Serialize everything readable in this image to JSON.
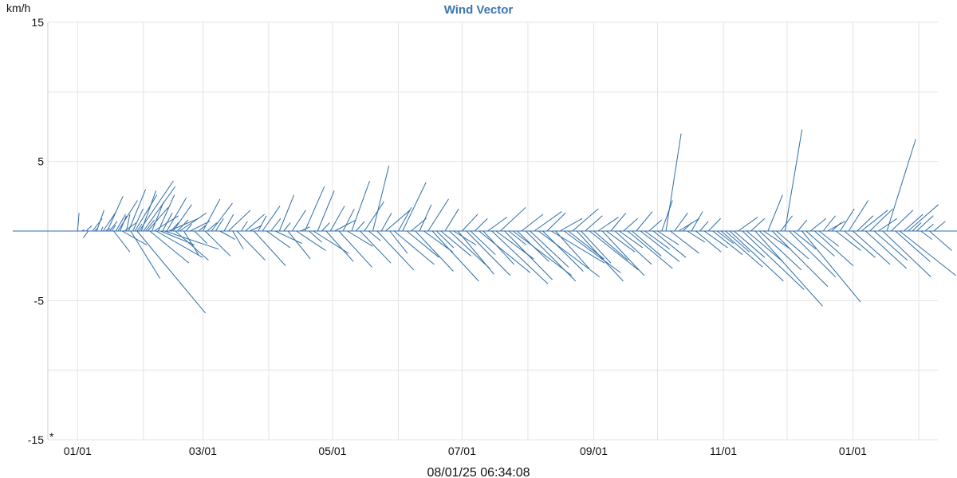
{
  "colors": {
    "series": "#2f6ea8",
    "title": "#3a76b0",
    "grid": "#e3e3e3"
  },
  "chart_data": {
    "type": "line",
    "subtype": "wind-vector",
    "title": "Wind Vector",
    "ylabel": "km/h",
    "ylim": [
      -15,
      15
    ],
    "y_ticks": [
      15,
      5,
      -5,
      -15
    ],
    "y_gridlines": [
      15,
      10,
      5,
      0,
      -5,
      -10,
      -15
    ],
    "x_tick_labels": [
      "01/01",
      "03/01",
      "05/01",
      "07/01",
      "09/01",
      "11/01",
      "01/01"
    ],
    "x_tick_days": [
      0,
      59,
      120,
      181,
      243,
      304,
      365
    ],
    "x_gridline_days": [
      0,
      31,
      59,
      90,
      120,
      151,
      181,
      212,
      243,
      273,
      304,
      334,
      365,
      396
    ],
    "xlim_days": [
      -14,
      405
    ],
    "timestamp": "08/01/25 06:34:08",
    "corner_marker": "*",
    "grid": true,
    "legend": "none",
    "series": [
      {
        "values_note": "each vector: [day, u_east_kmh, v_north_kmh]",
        "vectors": [
          [
            0,
            -7.0,
            0.0
          ],
          [
            0,
            0.3,
            1.3
          ],
          [
            2,
            0.5,
            0.1
          ],
          [
            4,
            1.2,
            0.4
          ],
          [
            5,
            -1.0,
            -0.5
          ],
          [
            7,
            2.0,
            0.9
          ],
          [
            8,
            0.6,
            0.2
          ],
          [
            9,
            1.5,
            1.5
          ],
          [
            11,
            0.4,
            0.3
          ],
          [
            12,
            2.7,
            1.4
          ],
          [
            13,
            1.0,
            0.2
          ],
          [
            14,
            3.2,
            2.5
          ],
          [
            15,
            1.6,
            0.7
          ],
          [
            16,
            0.8,
            0.4
          ],
          [
            17,
            3.3,
            -1.5
          ],
          [
            18,
            2.0,
            1.2
          ],
          [
            19,
            4.0,
            2.2
          ],
          [
            20,
            1.3,
            1.1
          ],
          [
            21,
            5.0,
            -1.0
          ],
          [
            22,
            2.5,
            0.6
          ],
          [
            23,
            0.7,
            1.2
          ],
          [
            24,
            3.5,
            3.0
          ],
          [
            25,
            6.0,
            -3.4
          ],
          [
            26,
            2.1,
            1.6
          ],
          [
            27,
            4.5,
            2.6
          ],
          [
            28,
            1.0,
            0.5
          ],
          [
            28,
            14.0,
            -5.9
          ],
          [
            29,
            7.0,
            3.6
          ],
          [
            30,
            3.0,
            2.9
          ],
          [
            31,
            6.5,
            3.2
          ],
          [
            32,
            1.8,
            0.8
          ],
          [
            33,
            4.2,
            1.7
          ],
          [
            34,
            8.0,
            -2.3
          ],
          [
            35,
            2.4,
            2.1
          ],
          [
            36,
            5.0,
            1.1
          ],
          [
            37,
            9.5,
            -1.9
          ],
          [
            38,
            3.3,
            2.6
          ],
          [
            39,
            7.0,
            -1.0
          ],
          [
            40,
            2.0,
            1.3
          ],
          [
            41,
            11.0,
            -1.3
          ],
          [
            42,
            4.0,
            2.4
          ],
          [
            43,
            6.0,
            0.9
          ],
          [
            44,
            1.5,
            0.6
          ],
          [
            45,
            3.8,
            1.9
          ],
          [
            46,
            6.8,
            -2.1
          ],
          [
            47,
            2.2,
            0.8
          ],
          [
            48,
            5.5,
            1.3
          ],
          [
            50,
            3.0,
            -1.7
          ],
          [
            51,
            1.2,
            0.5
          ],
          [
            53,
            4.0,
            0.7
          ],
          [
            55,
            2.6,
            -0.9
          ],
          [
            57,
            1.4,
            0.4
          ],
          [
            59,
            3.5,
            2.3
          ],
          [
            60,
            5.2,
            -1.8
          ],
          [
            61,
            2.0,
            0.6
          ],
          [
            63,
            4.3,
            2.0
          ],
          [
            65,
            1.6,
            0.9
          ],
          [
            67,
            3.1,
            -0.6
          ],
          [
            69,
            1.9,
            1.2
          ],
          [
            71,
            4.5,
            1.5
          ],
          [
            73,
            2.2,
            -1.3
          ],
          [
            75,
            5.8,
            -2.1
          ],
          [
            77,
            1.3,
            0.7
          ],
          [
            79,
            3.9,
            1.2
          ],
          [
            81,
            2.5,
            0.4
          ],
          [
            83,
            6.5,
            -2.5
          ],
          [
            85,
            1.7,
            1.1
          ],
          [
            87,
            3.6,
            1.8
          ],
          [
            89,
            4.8,
            -1.2
          ],
          [
            91,
            2.0,
            0.9
          ],
          [
            93,
            5.5,
            -0.9
          ],
          [
            95,
            3.0,
            2.6
          ],
          [
            97,
            1.4,
            0.6
          ],
          [
            99,
            4.6,
            -2.0
          ],
          [
            101,
            2.8,
            1.5
          ],
          [
            103,
            6.0,
            -1.4
          ],
          [
            105,
            1.9,
            0.3
          ],
          [
            107,
            4.0,
            3.2
          ],
          [
            109,
            2.6,
            -0.8
          ],
          [
            111,
            7.2,
            -1.6
          ],
          [
            113,
            3.4,
            2.9
          ],
          [
            115,
            1.6,
            0.6
          ],
          [
            117,
            5.6,
            -2.2
          ],
          [
            119,
            2.9,
            1.8
          ],
          [
            121,
            4.4,
            0.8
          ],
          [
            123,
            6.8,
            -2.6
          ],
          [
            125,
            2.3,
            1.6
          ],
          [
            127,
            5.2,
            -1.1
          ],
          [
            129,
            3.7,
            3.6
          ],
          [
            131,
            1.8,
            0.7
          ],
          [
            133,
            6.3,
            -2.3
          ],
          [
            135,
            4.0,
            2.1
          ],
          [
            137,
            2.5,
            -0.7
          ],
          [
            139,
            3.3,
            4.7
          ],
          [
            141,
            7.5,
            -2.8
          ],
          [
            143,
            2.1,
            1.3
          ],
          [
            145,
            5.0,
            1.5
          ],
          [
            147,
            3.6,
            -1.6
          ],
          [
            149,
            8.2,
            -2.4
          ],
          [
            151,
            2.7,
            1.7
          ],
          [
            153,
            4.8,
            3.5
          ],
          [
            155,
            6.6,
            -1.9
          ],
          [
            157,
            3.1,
            0.9
          ],
          [
            159,
            7.8,
            -2.9
          ],
          [
            161,
            2.4,
            1.9
          ],
          [
            163,
            5.9,
            -1.5
          ],
          [
            165,
            4.2,
            2.3
          ],
          [
            167,
            9.5,
            -3.6
          ],
          [
            169,
            3.5,
            -1.2
          ],
          [
            171,
            6.2,
            -1.8
          ],
          [
            173,
            2.8,
            1.6
          ],
          [
            175,
            8.3,
            -2.7
          ],
          [
            177,
            4.6,
            -1.0
          ],
          [
            179,
            7.4,
            -3.1
          ],
          [
            181,
            3.2,
            1.2
          ],
          [
            183,
            9.0,
            -3.2
          ],
          [
            185,
            5.1,
            -1.7
          ],
          [
            187,
            2.6,
            0.9
          ],
          [
            189,
            10.5,
            -3.0
          ],
          [
            191,
            6.3,
            -2.4
          ],
          [
            193,
            4.0,
            1.0
          ],
          [
            195,
            11.5,
            -3.8
          ],
          [
            197,
            7.7,
            -2.0
          ],
          [
            199,
            5.2,
            1.7
          ],
          [
            201,
            9.8,
            -3.5
          ],
          [
            203,
            3.6,
            -1.0
          ],
          [
            205,
            12.0,
            -3.2
          ],
          [
            207,
            6.5,
            -2.2
          ],
          [
            209,
            4.4,
            1.2
          ],
          [
            211,
            10.2,
            -3.6
          ],
          [
            213,
            7.9,
            -2.6
          ],
          [
            215,
            5.6,
            1.4
          ],
          [
            217,
            12.5,
            -3.3
          ],
          [
            219,
            8.3,
            -2.9
          ],
          [
            221,
            3.8,
            1.3
          ],
          [
            223,
            10.9,
            -2.3
          ],
          [
            225,
            6.9,
            -2.7
          ],
          [
            227,
            4.6,
            0.9
          ],
          [
            229,
            11.6,
            -3.0
          ],
          [
            231,
            7.3,
            -2.0
          ],
          [
            233,
            5.3,
            1.6
          ],
          [
            235,
            9.5,
            -3.6
          ],
          [
            237,
            6.1,
            -2.3
          ],
          [
            239,
            3.5,
            1.1
          ],
          [
            241,
            10.0,
            -2.8
          ],
          [
            243,
            7.0,
            -2.1
          ],
          [
            245,
            4.2,
            1.0
          ],
          [
            247,
            8.6,
            -3.2
          ],
          [
            249,
            5.8,
            -1.5
          ],
          [
            251,
            3.1,
            1.3
          ],
          [
            253,
            7.5,
            -2.4
          ],
          [
            255,
            4.8,
            -1.2
          ],
          [
            257,
            2.9,
            0.9
          ],
          [
            259,
            9.2,
            -2.7
          ],
          [
            261,
            6.0,
            -1.8
          ],
          [
            263,
            3.3,
            1.4
          ],
          [
            265,
            8.0,
            -2.2
          ],
          [
            267,
            5.1,
            -1.3
          ],
          [
            269,
            2.6,
            0.8
          ],
          [
            271,
            6.7,
            -1.9
          ],
          [
            273,
            4.4,
            -1.0
          ],
          [
            275,
            2.2,
            2.2
          ],
          [
            277,
            3.1,
            7.0
          ],
          [
            279,
            5.9,
            -1.6
          ],
          [
            281,
            2.7,
            1.3
          ],
          [
            283,
            4.2,
            0.9
          ],
          [
            285,
            1.8,
            0.6
          ],
          [
            287,
            3.6,
            -0.8
          ],
          [
            289,
            2.3,
            1.4
          ],
          [
            291,
            5.2,
            -1.5
          ],
          [
            293,
            1.7,
            0.7
          ],
          [
            295,
            4.8,
            -1.2
          ],
          [
            297,
            2.5,
            0.9
          ],
          [
            299,
            6.1,
            -1.7
          ],
          [
            301,
            3.4,
            -0.9
          ],
          [
            303,
            8.5,
            -2.6
          ],
          [
            305,
            4.9,
            -1.5
          ],
          [
            307,
            11.0,
            -3.6
          ],
          [
            309,
            6.3,
            -1.9
          ],
          [
            311,
            4.0,
            1.0
          ],
          [
            313,
            12.6,
            -4.2
          ],
          [
            315,
            7.4,
            -2.2
          ],
          [
            317,
            2.8,
            0.9
          ],
          [
            319,
            13.8,
            -5.4
          ],
          [
            321,
            8.6,
            -2.8
          ],
          [
            323,
            5.5,
            -1.3
          ],
          [
            325,
            3.0,
            2.6
          ],
          [
            327,
            11.4,
            -4.0
          ],
          [
            329,
            6.6,
            -2.0
          ],
          [
            331,
            2.4,
            1.1
          ],
          [
            333,
            3.5,
            7.3
          ],
          [
            335,
            9.5,
            -3.3
          ],
          [
            337,
            4.6,
            -1.3
          ],
          [
            339,
            1.9,
            0.8
          ],
          [
            341,
            12.0,
            -5.1
          ],
          [
            343,
            5.8,
            -1.8
          ],
          [
            345,
            3.2,
            0.9
          ],
          [
            347,
            7.9,
            -2.5
          ],
          [
            349,
            4.1,
            -1.1
          ],
          [
            351,
            2.5,
            1.1
          ],
          [
            353,
            3.6,
            0.7
          ],
          [
            355,
            1.9,
            0.6
          ],
          [
            357,
            5.1,
            -1.4
          ],
          [
            359,
            2.9,
            1.6
          ],
          [
            361,
            6.3,
            -1.9
          ],
          [
            363,
            4.0,
            2.2
          ],
          [
            365,
            7.6,
            -2.4
          ],
          [
            367,
            3.3,
            1.1
          ],
          [
            369,
            5.4,
            1.5
          ],
          [
            371,
            8.4,
            -2.7
          ],
          [
            373,
            4.7,
            1.6
          ],
          [
            375,
            6.8,
            -2.1
          ],
          [
            377,
            3.8,
            0.9
          ],
          [
            379,
            9.9,
            -3.3
          ],
          [
            381,
            5.9,
            6.6
          ],
          [
            383,
            4.5,
            1.5
          ],
          [
            385,
            7.1,
            -2.2
          ],
          [
            387,
            11.5,
            -3.2
          ],
          [
            389,
            3.9,
            1.2
          ],
          [
            391,
            6.2,
            1.9
          ],
          [
            393,
            1.8,
            0.6
          ],
          [
            395,
            3.4,
            1.1
          ],
          [
            397,
            2.3,
            -0.6
          ],
          [
            399,
            1.7,
            0.5
          ],
          [
            401,
            4.6,
            -1.4
          ],
          [
            403,
            2.4,
            0.7
          ]
        ]
      }
    ]
  }
}
